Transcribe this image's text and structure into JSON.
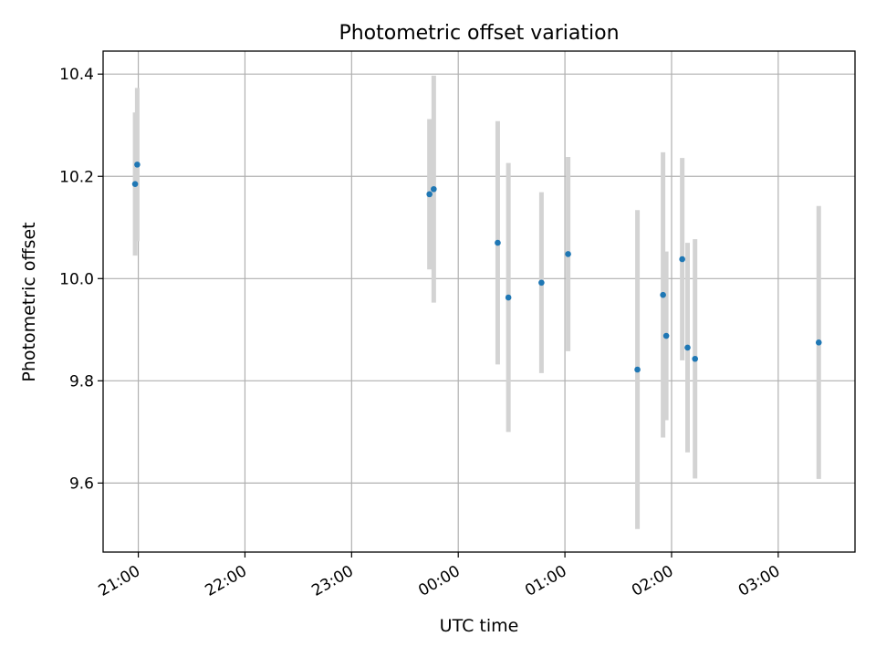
{
  "chart_data": {
    "type": "scatter",
    "title": "Photometric offset variation",
    "xlabel": "UTC time",
    "ylabel": "Photometric offset",
    "xlim_hours": [
      20.67,
      27.72
    ],
    "ylim": [
      9.465,
      10.445
    ],
    "x_ticks": [
      {
        "hour": 21,
        "label": "21:00"
      },
      {
        "hour": 22,
        "label": "22:00"
      },
      {
        "hour": 23,
        "label": "23:00"
      },
      {
        "hour": 24,
        "label": "00:00"
      },
      {
        "hour": 25,
        "label": "01:00"
      },
      {
        "hour": 26,
        "label": "02:00"
      },
      {
        "hour": 27,
        "label": "03:00"
      }
    ],
    "y_ticks": [
      {
        "value": 9.6,
        "label": "9.6"
      },
      {
        "value": 9.8,
        "label": "9.8"
      },
      {
        "value": 10.0,
        "label": "10.0"
      },
      {
        "value": 10.2,
        "label": "10.2"
      },
      {
        "value": 10.4,
        "label": "10.4"
      }
    ],
    "grid": true,
    "colors": {
      "point": "#1f77b4",
      "error_bar": "#d3d3d3"
    },
    "points": [
      {
        "time": "20:58",
        "hour": 20.97,
        "y": 10.185,
        "yerr": 0.14
      },
      {
        "time": "20:59",
        "hour": 20.99,
        "y": 10.223,
        "yerr": 0.15
      },
      {
        "time": "23:43",
        "hour": 23.73,
        "y": 10.165,
        "yerr": 0.147
      },
      {
        "time": "23:46",
        "hour": 23.77,
        "y": 10.175,
        "yerr": 0.222
      },
      {
        "time": "00:22",
        "hour": 24.37,
        "y": 10.07,
        "yerr": 0.238
      },
      {
        "time": "00:28",
        "hour": 24.47,
        "y": 9.963,
        "yerr": 0.263
      },
      {
        "time": "00:47",
        "hour": 24.78,
        "y": 9.992,
        "yerr": 0.177
      },
      {
        "time": "01:02",
        "hour": 25.03,
        "y": 10.048,
        "yerr": 0.19
      },
      {
        "time": "01:41",
        "hour": 25.68,
        "y": 9.822,
        "yerr": 0.312
      },
      {
        "time": "01:55",
        "hour": 25.92,
        "y": 9.968,
        "yerr": 0.279
      },
      {
        "time": "01:57",
        "hour": 25.95,
        "y": 9.888,
        "yerr": 0.165
      },
      {
        "time": "02:06",
        "hour": 26.1,
        "y": 10.038,
        "yerr": 0.198
      },
      {
        "time": "02:09",
        "hour": 26.15,
        "y": 9.865,
        "yerr": 0.205
      },
      {
        "time": "02:13",
        "hour": 26.22,
        "y": 9.843,
        "yerr": 0.234
      },
      {
        "time": "03:23",
        "hour": 27.38,
        "y": 9.875,
        "yerr": 0.267
      }
    ]
  }
}
